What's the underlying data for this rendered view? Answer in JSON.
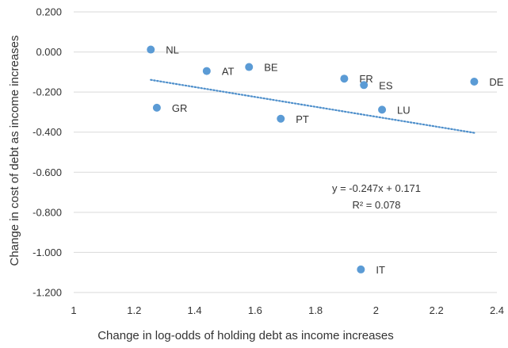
{
  "chart_data": {
    "type": "scatter",
    "xlabel": "Change in log-odds of holding debt as income increases",
    "ylabel": "Change in cost of debt as income increases",
    "xlim": [
      1,
      2.4
    ],
    "ylim": [
      -1.2,
      0.2
    ],
    "x_ticks": [
      "1",
      "1.2",
      "1.4",
      "1.6",
      "1.8",
      "2",
      "2.2",
      "2.4"
    ],
    "y_ticks": [
      "0.200",
      "0.000",
      "-0.200",
      "-0.400",
      "-0.600",
      "-0.800",
      "-1.000",
      "-1.200"
    ],
    "grid": "horizontal",
    "points": [
      {
        "label": "NL",
        "x": 1.255,
        "y": 0.012
      },
      {
        "label": "AT",
        "x": 1.44,
        "y": -0.095
      },
      {
        "label": "BE",
        "x": 1.58,
        "y": -0.075
      },
      {
        "label": "GR",
        "x": 1.275,
        "y": -0.278
      },
      {
        "label": "PT",
        "x": 1.685,
        "y": -0.333
      },
      {
        "label": "FR",
        "x": 1.895,
        "y": -0.133
      },
      {
        "label": "ES",
        "x": 1.96,
        "y": -0.165
      },
      {
        "label": "LU",
        "x": 2.02,
        "y": -0.288
      },
      {
        "label": "DE",
        "x": 2.325,
        "y": -0.148
      },
      {
        "label": "IT",
        "x": 1.95,
        "y": -1.085
      }
    ],
    "trendline": {
      "type": "linear",
      "slope": -0.247,
      "intercept": 0.171,
      "x_range": [
        1.255,
        2.325
      ],
      "color": "#4e8fcb",
      "equation": "y = -0.247x + 0.171",
      "r_squared": "R² = 0.078"
    },
    "marker_color": "#5b9bd5"
  }
}
